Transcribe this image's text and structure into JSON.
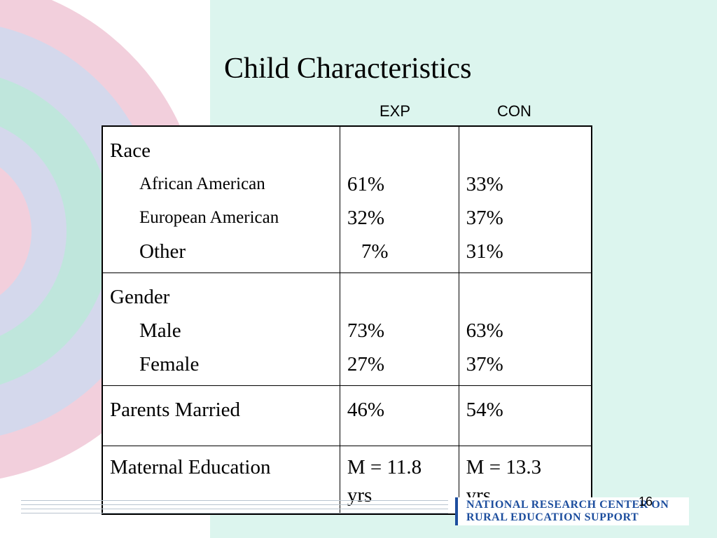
{
  "slide": {
    "title": "Child Characteristics",
    "page_number": "16"
  },
  "columns": {
    "exp": "EXP",
    "con": "CON"
  },
  "table": {
    "race": {
      "label": "Race",
      "rows": [
        {
          "label": "African American",
          "exp": "61%",
          "con": "33%"
        },
        {
          "label": "European American",
          "exp": "32%",
          "con": "37%"
        },
        {
          "label": "Other",
          "exp": "7%",
          "con": "31%"
        }
      ]
    },
    "gender": {
      "label": "Gender",
      "rows": [
        {
          "label": "Male",
          "exp": "73%",
          "con": "63%"
        },
        {
          "label": "Female",
          "exp": "27%",
          "con": "37%"
        }
      ]
    },
    "parents_married": {
      "label": "Parents Married",
      "exp": "46%",
      "con": "54%"
    },
    "maternal_education": {
      "label": "Maternal Education",
      "exp_line1": "M = 11.8",
      "exp_line2": "yrs",
      "con_line1": "M = 13.3",
      "con_line2": "yrs"
    }
  },
  "logo": {
    "line1": "NATIONAL RESEARCH CENTER ON",
    "line2": "RURAL EDUCATION SUPPORT"
  },
  "colors": {
    "background_right": "#dcf5ee",
    "arc_pink": "#f2cfdc",
    "arc_lavender": "#d4d8ec",
    "arc_teal": "#bfe6dc",
    "logo_blue": "#1d4e9e"
  }
}
